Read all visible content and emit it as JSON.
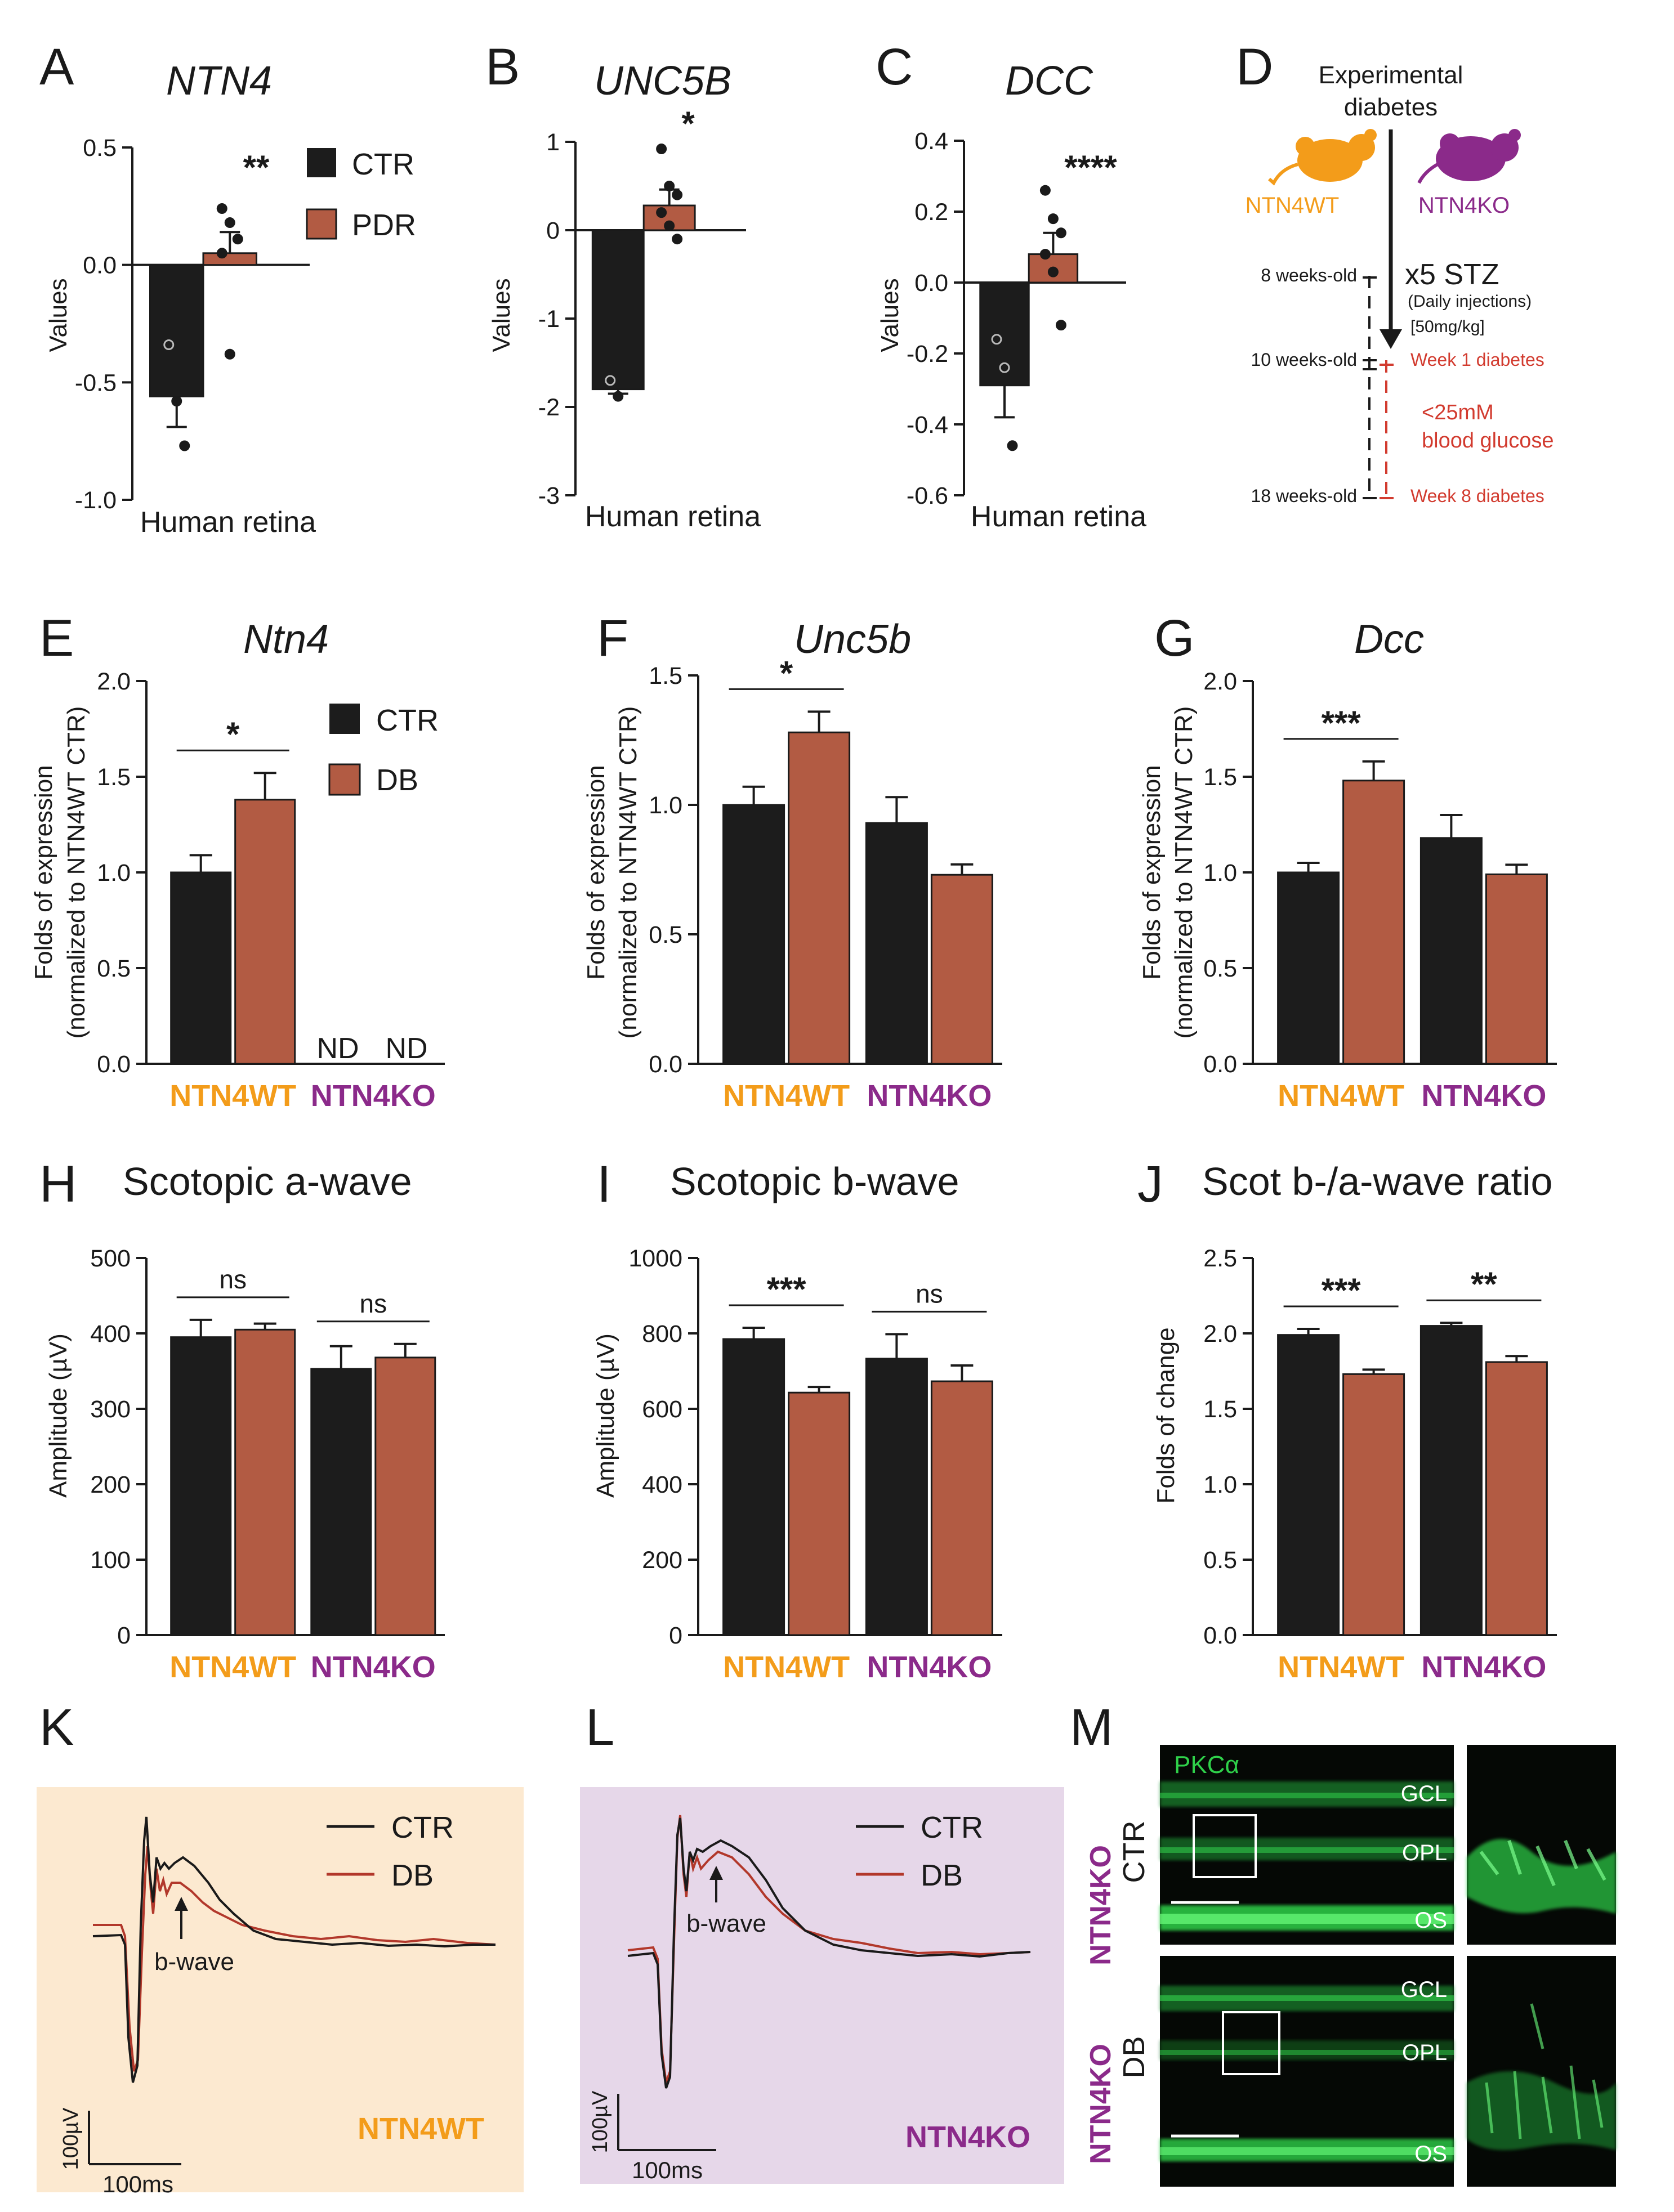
{
  "colors": {
    "ctr": "#1c1c1c",
    "disease": "#b25b43",
    "wt": "#f39c1a",
    "ko": "#8b2a8a",
    "ko_bg": "#e6d7e9",
    "wt_bg": "#fce9d0",
    "red_text": "#d23b2f",
    "pkc_green": "#2fd14a"
  },
  "panels": {
    "A": {
      "letter": "A",
      "title": "NTN4",
      "ylabel": "Values",
      "xlabel": "Human retina",
      "legend": [
        "CTR",
        "PDR"
      ],
      "sig": "**"
    },
    "B": {
      "letter": "B",
      "title": "UNC5B",
      "ylabel": "Values",
      "xlabel": "Human retina",
      "sig": "*"
    },
    "C": {
      "letter": "C",
      "title": "DCC",
      "ylabel": "Values",
      "xlabel": "Human retina",
      "sig": "****"
    },
    "D": {
      "letter": "D",
      "title_line1": "Experimental",
      "title_line2": "diabetes",
      "wt": "NTN4WT",
      "ko": "NTN4KO",
      "stz": "x5 STZ",
      "stz_note": "(Daily injections)",
      "dose": "[50mg/kg]",
      "age1": "8 weeks-old",
      "age2": "10 weeks-old",
      "age3": "18 weeks-old",
      "week1": "Week 1 diabetes",
      "glucose1": "<25mM",
      "glucose2": "blood glucose",
      "week8": "Week 8 diabetes"
    },
    "E": {
      "letter": "E",
      "title": "Ntn4",
      "legend": [
        "CTR",
        "DB"
      ],
      "nd": "ND",
      "sig": "*"
    },
    "F": {
      "letter": "F",
      "title": "Unc5b",
      "sig": "*"
    },
    "G": {
      "letter": "G",
      "title": "Dcc",
      "sig": "***"
    },
    "H": {
      "letter": "H",
      "title": "Scotopic a-wave",
      "ylabel": "Amplitude (µV)",
      "sig": [
        "ns",
        "ns"
      ]
    },
    "I": {
      "letter": "I",
      "title": "Scotopic b-wave",
      "ylabel": "Amplitude (µV)",
      "sig": [
        "***",
        "ns"
      ]
    },
    "J": {
      "letter": "J",
      "title": "Scot b-/a-wave ratio",
      "ylabel": "Folds of change",
      "sig": [
        "***",
        "**"
      ]
    },
    "K": {
      "letter": "K",
      "legend": [
        "CTR",
        "DB"
      ],
      "annotation": "b-wave",
      "scale_y": "100µV",
      "scale_x": "100ms",
      "group": "NTN4WT"
    },
    "L": {
      "letter": "L",
      "legend": [
        "CTR",
        "DB"
      ],
      "annotation": "b-wave",
      "scale_y": "100µV",
      "scale_x": "100ms",
      "group": "NTN4KO"
    },
    "M": {
      "letter": "M",
      "stain": "PKCα",
      "row1_group": "NTN4KO",
      "row1_cond": "CTR",
      "row2_group": "NTN4KO",
      "row2_cond": "DB",
      "layers": [
        "GCL",
        "OPL",
        "OS"
      ]
    }
  },
  "expr_ylabel1": "Folds of expression",
  "expr_ylabel2": "(normalized to NTN4WT CTR)",
  "groups": [
    "NTN4WT",
    "NTN4KO"
  ],
  "chart_data": [
    {
      "panel": "A",
      "type": "bar",
      "categories": [
        "CTR",
        "PDR"
      ],
      "values": [
        -0.56,
        0.05
      ],
      "errors": [
        0.13,
        0.09
      ],
      "ylim": [
        -1.0,
        0.5
      ],
      "yticks": [
        "0.5",
        "0.0",
        "-0.5",
        "-1.0"
      ],
      "points": [
        [
          -0.34,
          -0.58,
          -0.77
        ],
        [
          0.24,
          0.18,
          0.11,
          0.05,
          -0.38
        ]
      ]
    },
    {
      "panel": "B",
      "type": "bar",
      "categories": [
        "CTR",
        "PDR"
      ],
      "values": [
        -1.8,
        0.28
      ],
      "errors": [
        0.05,
        0.18
      ],
      "ylim": [
        -3,
        1
      ],
      "yticks": [
        "1",
        "0",
        "-1",
        "-2",
        "-3"
      ],
      "points": [
        [
          -1.7,
          -1.88
        ],
        [
          0.92,
          0.5,
          0.4,
          0.2,
          0.05,
          -0.1
        ]
      ]
    },
    {
      "panel": "C",
      "type": "bar",
      "categories": [
        "CTR",
        "PDR"
      ],
      "values": [
        -0.29,
        0.08
      ],
      "errors": [
        0.09,
        0.06
      ],
      "ylim": [
        -0.6,
        0.4
      ],
      "yticks": [
        "0.4",
        "0.2",
        "0.0",
        "-0.2",
        "-0.4",
        "-0.6"
      ],
      "points": [
        [
          -0.16,
          -0.24,
          -0.46
        ],
        [
          0.26,
          0.18,
          0.14,
          0.08,
          0.03,
          -0.12
        ]
      ]
    },
    {
      "panel": "E",
      "type": "bar",
      "categories": [
        "NTN4WT",
        "NTN4KO"
      ],
      "series": [
        {
          "name": "CTR",
          "values": [
            1.0,
            null
          ],
          "errors": [
            0.09,
            null
          ]
        },
        {
          "name": "DB",
          "values": [
            1.38,
            null
          ],
          "errors": [
            0.14,
            null
          ]
        }
      ],
      "ylim": [
        0,
        2.0
      ],
      "yticks": [
        "0.0",
        "0.5",
        "1.0",
        "1.5",
        "2.0"
      ]
    },
    {
      "panel": "F",
      "type": "bar",
      "categories": [
        "NTN4WT",
        "NTN4KO"
      ],
      "series": [
        {
          "name": "CTR",
          "values": [
            1.0,
            0.93
          ],
          "errors": [
            0.07,
            0.1
          ]
        },
        {
          "name": "DB",
          "values": [
            1.28,
            0.73
          ],
          "errors": [
            0.08,
            0.04
          ]
        }
      ],
      "ylim": [
        0,
        1.5
      ],
      "yticks": [
        "0.0",
        "0.5",
        "1.0",
        "1.5"
      ]
    },
    {
      "panel": "G",
      "type": "bar",
      "categories": [
        "NTN4WT",
        "NTN4KO"
      ],
      "series": [
        {
          "name": "CTR",
          "values": [
            1.0,
            1.18
          ],
          "errors": [
            0.05,
            0.12
          ]
        },
        {
          "name": "DB",
          "values": [
            1.48,
            0.99
          ],
          "errors": [
            0.1,
            0.05
          ]
        }
      ],
      "ylim": [
        0,
        2.0
      ],
      "yticks": [
        "0.0",
        "0.5",
        "1.0",
        "1.5",
        "2.0"
      ]
    },
    {
      "panel": "H",
      "type": "bar",
      "categories": [
        "NTN4WT",
        "NTN4KO"
      ],
      "series": [
        {
          "name": "CTR",
          "values": [
            395,
            353
          ],
          "errors": [
            23,
            30
          ]
        },
        {
          "name": "DB",
          "values": [
            405,
            368
          ],
          "errors": [
            8,
            18
          ]
        }
      ],
      "ylim": [
        0,
        500
      ],
      "yticks": [
        "0",
        "100",
        "200",
        "300",
        "400",
        "500"
      ]
    },
    {
      "panel": "I",
      "type": "bar",
      "categories": [
        "NTN4WT",
        "NTN4KO"
      ],
      "series": [
        {
          "name": "CTR",
          "values": [
            785,
            733
          ],
          "errors": [
            30,
            65
          ]
        },
        {
          "name": "DB",
          "values": [
            643,
            673
          ],
          "errors": [
            15,
            42
          ]
        }
      ],
      "ylim": [
        0,
        1000
      ],
      "yticks": [
        "0",
        "200",
        "400",
        "600",
        "800",
        "1000"
      ]
    },
    {
      "panel": "J",
      "type": "bar",
      "categories": [
        "NTN4WT",
        "NTN4KO"
      ],
      "series": [
        {
          "name": "CTR",
          "values": [
            1.99,
            2.05
          ],
          "errors": [
            0.04,
            0.02
          ]
        },
        {
          "name": "DB",
          "values": [
            1.73,
            1.81
          ],
          "errors": [
            0.03,
            0.04
          ]
        }
      ],
      "ylim": [
        0,
        2.5
      ],
      "yticks": [
        "0.0",
        "0.5",
        "1.0",
        "1.5",
        "2.0",
        "2.5"
      ]
    }
  ]
}
